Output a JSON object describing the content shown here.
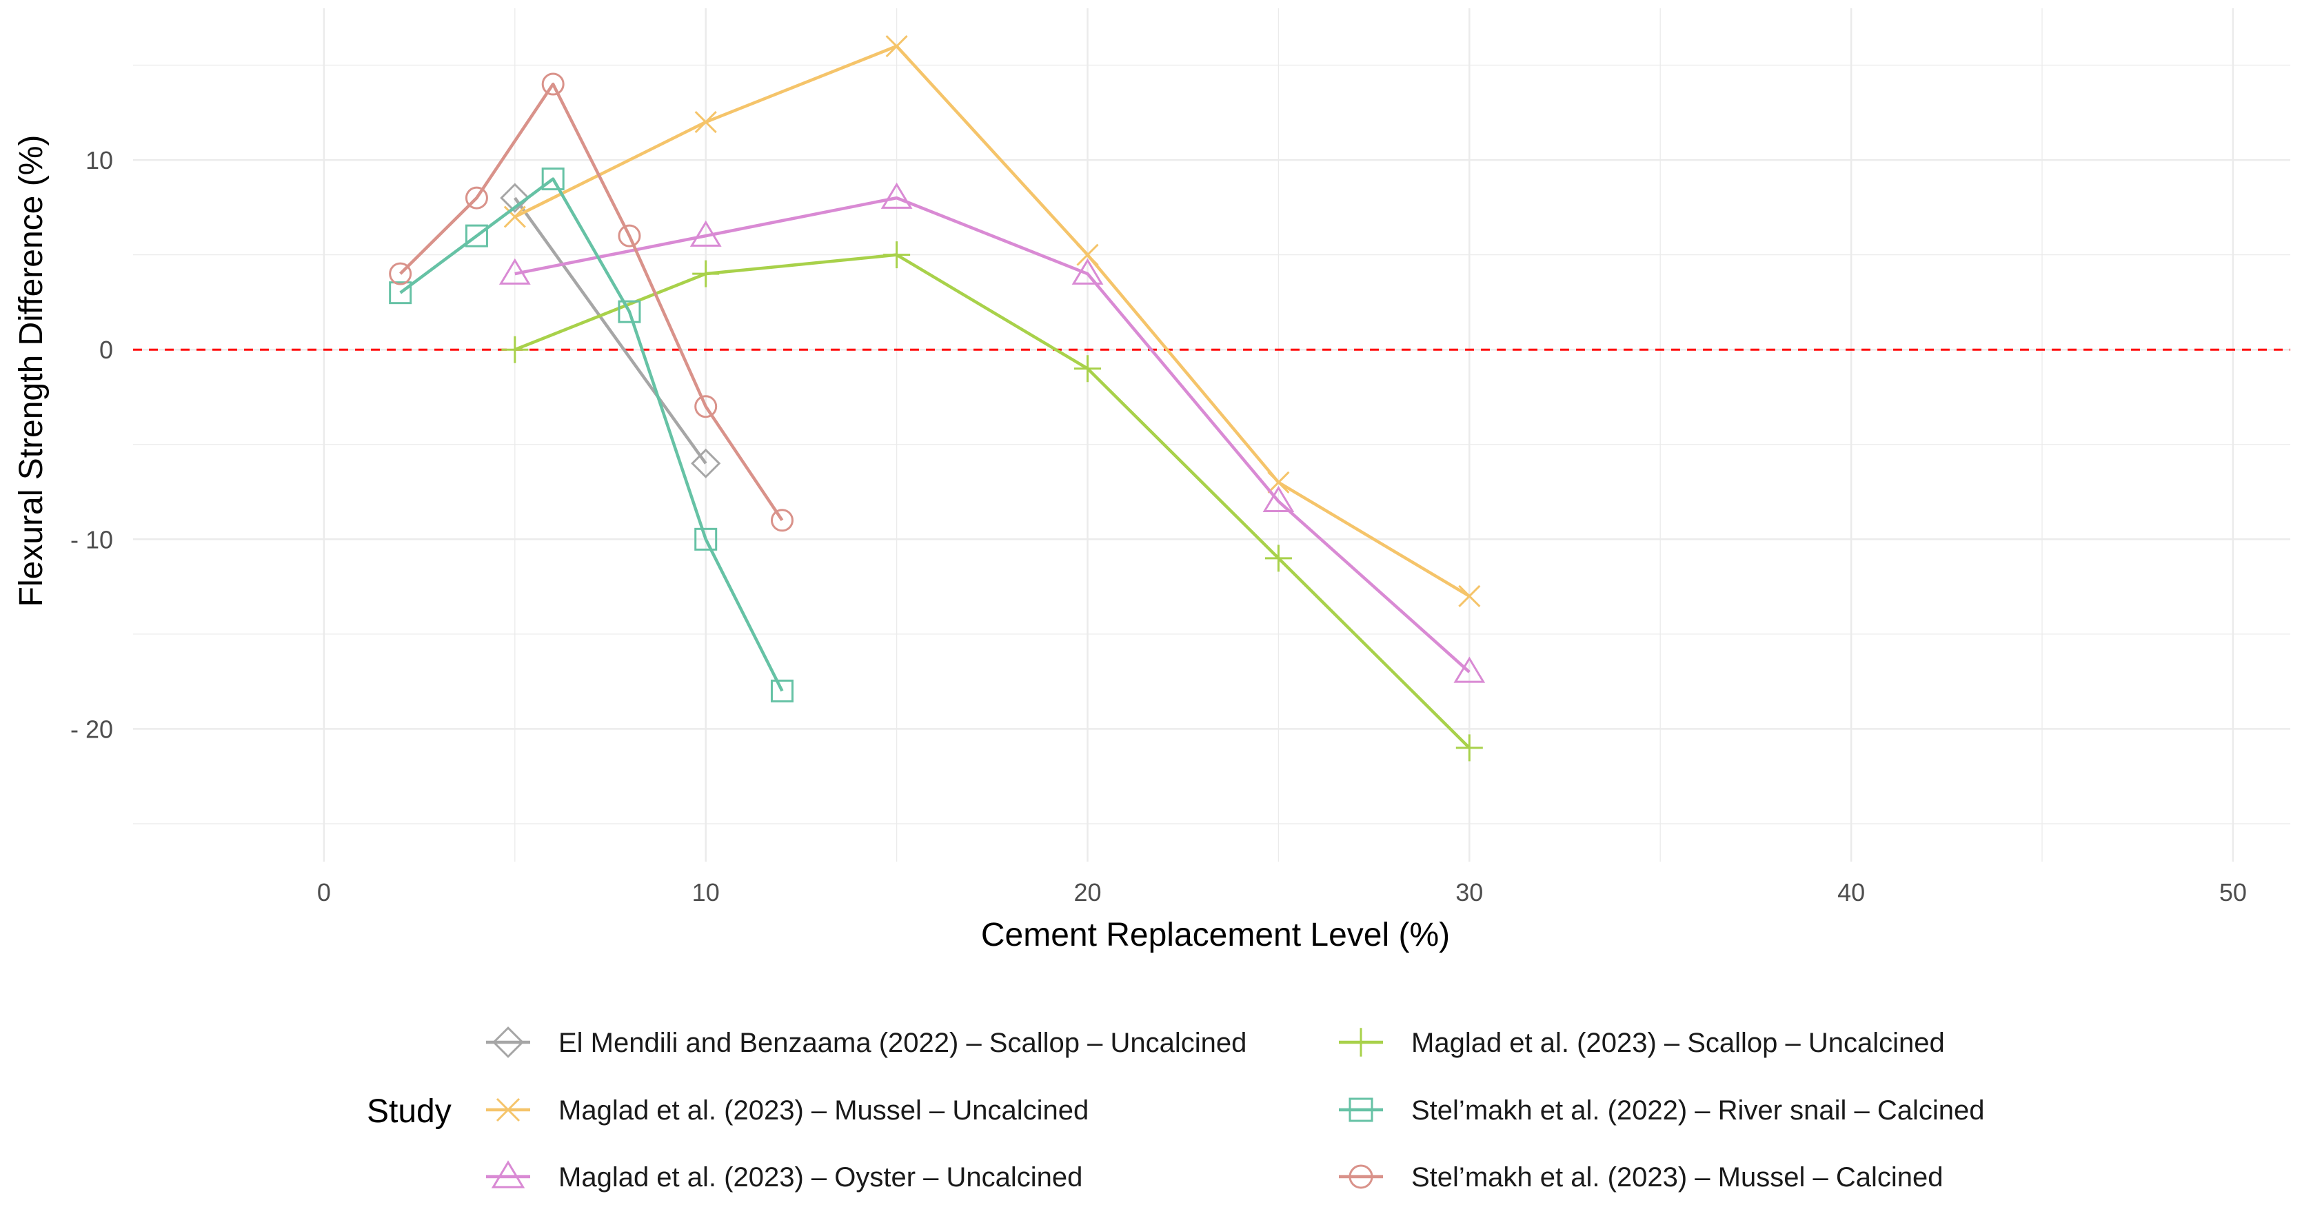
{
  "chart_data": {
    "type": "line",
    "title": "",
    "xlabel": "Cement Replacement Level (%)",
    "ylabel": "Flexural Strength Difference (%)",
    "xlim": [
      -5,
      51.5
    ],
    "ylim": [
      -27,
      18
    ],
    "x_ticks": [
      0,
      10,
      20,
      30,
      40,
      50
    ],
    "x_tick_labels": [
      "0",
      "10",
      "20",
      "30",
      "40",
      "50"
    ],
    "y_ticks": [
      10,
      0,
      -10,
      -20
    ],
    "y_tick_labels": [
      "10",
      "0",
      "- 10",
      "- 20"
    ],
    "grid": true,
    "reference_line": {
      "y": 0,
      "color": "#ff0000",
      "style": "dashed"
    },
    "legend_title": "Study",
    "legend_position": "bottom",
    "series": [
      {
        "name": "El Mendili and Benzaama (2022) – Scallop – Uncalcined",
        "color": "#a6a6a6",
        "marker": "diamond",
        "x": [
          5,
          10
        ],
        "y": [
          8,
          -6
        ]
      },
      {
        "name": "Maglad et al. (2023) – Mussel – Uncalcined",
        "color": "#f5c46a",
        "marker": "x",
        "x": [
          5,
          10,
          15,
          20,
          25,
          30
        ],
        "y": [
          7,
          12,
          16,
          5,
          -7,
          -13
        ]
      },
      {
        "name": "Maglad et al. (2023) – Oyster – Uncalcined",
        "color": "#d98ad4",
        "marker": "triangle",
        "x": [
          5,
          10,
          15,
          20,
          25,
          30
        ],
        "y": [
          4,
          6,
          8,
          4,
          -8,
          -17
        ]
      },
      {
        "name": "Maglad et al. (2023) – Scallop – Uncalcined",
        "color": "#a8d14a",
        "marker": "plus",
        "x": [
          5,
          10,
          15,
          20,
          25,
          30
        ],
        "y": [
          0,
          4,
          5,
          -1,
          -11,
          -21
        ]
      },
      {
        "name": "Stel’makh et al. (2022) – River snail – Calcined",
        "color": "#66c2a5",
        "marker": "square",
        "x": [
          2,
          4,
          6,
          8,
          10,
          12
        ],
        "y": [
          3,
          6,
          9,
          2,
          -10,
          -18
        ]
      },
      {
        "name": "Stel’makh et al. (2023) – Mussel – Calcined",
        "color": "#d9928a",
        "marker": "circle",
        "x": [
          2,
          4,
          6,
          8,
          10,
          12
        ],
        "y": [
          4,
          8,
          14,
          6,
          -3,
          -9
        ]
      }
    ]
  }
}
